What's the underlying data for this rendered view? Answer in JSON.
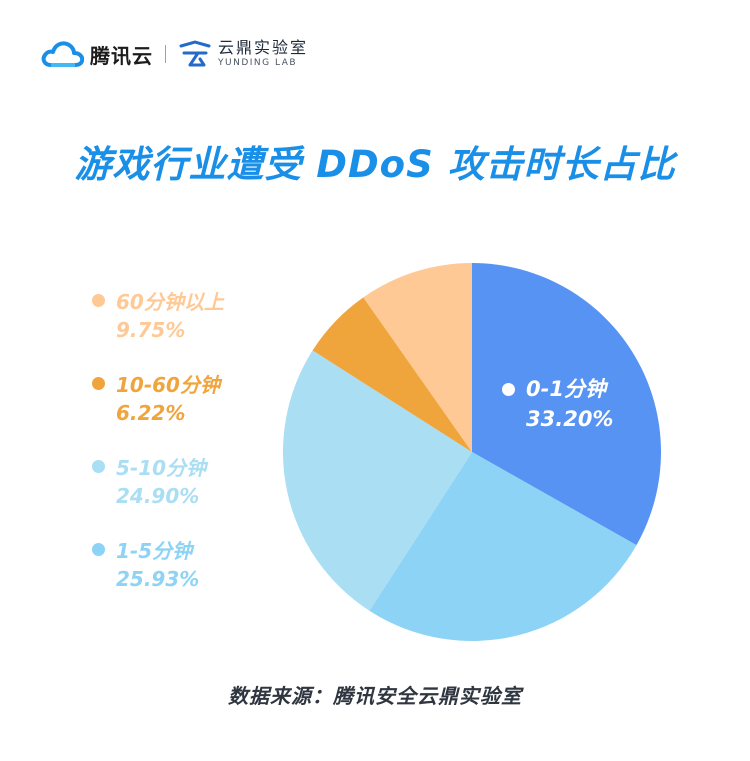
{
  "header": {
    "brand": "腾讯云",
    "lab_cn": "云鼎实验室",
    "lab_en": "YUNDING LAB"
  },
  "title": "游戏行业遭受 DDoS 攻击时长占比",
  "source": "数据来源：腾讯安全云鼎实验室",
  "chart_data": {
    "type": "pie",
    "slices": [
      {
        "label": "0-1分钟",
        "value": 33.2,
        "display": "33.20%",
        "color": "#5793F3"
      },
      {
        "label": "1-5分钟",
        "value": 25.93,
        "display": "25.93%",
        "color": "#8DD3F6"
      },
      {
        "label": "5-10分钟",
        "value": 24.9,
        "display": "24.90%",
        "color": "#A9DEF3"
      },
      {
        "label": "10-60分钟",
        "value": 6.22,
        "display": "6.22%",
        "color": "#F0A43C"
      },
      {
        "label": "60分钟以上",
        "value": 9.75,
        "display": "9.75%",
        "color": "#FFC995"
      }
    ]
  }
}
